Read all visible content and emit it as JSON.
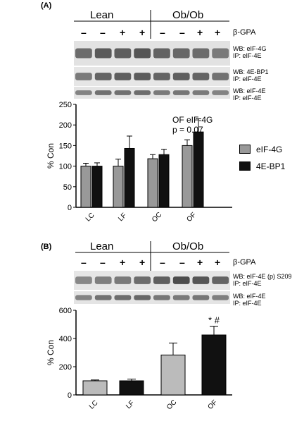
{
  "panelA": {
    "label": "(A)",
    "groups": [
      "Lean",
      "Ob/Ob"
    ],
    "treatment_label": "β-GPA",
    "signs": [
      "–",
      "–",
      "+",
      "+",
      "–",
      "–",
      "+",
      "+"
    ],
    "blots": [
      {
        "line1": "WB: eIF-4G",
        "line2": "IP: eIF-4E"
      },
      {
        "line1": "WB: 4E-BP1",
        "line2": "IP: eIF-4E"
      },
      {
        "line1": "WB: eIF-4E",
        "line2": "IP: eIF-4E"
      }
    ],
    "annotation_line1": "OF eIF-4G",
    "annotation_line2": "p = 0.07",
    "legend": [
      "eIF-4G",
      "4E-BP1"
    ]
  },
  "panelB": {
    "label": "(B)",
    "groups": [
      "Lean",
      "Ob/Ob"
    ],
    "treatment_label": "β-GPA",
    "signs": [
      "–",
      "–",
      "+",
      "+",
      "–",
      "–",
      "+",
      "+"
    ],
    "blots": [
      {
        "line1": "WB: eIF-4E (p) S209",
        "line2": "IP: eIF-4E"
      },
      {
        "line1": "WB: eIF-4E",
        "line2": "IP: eIF-4E"
      }
    ],
    "significance": "* #"
  },
  "chart_data": [
    {
      "type": "bar",
      "categories": [
        "LC",
        "LF",
        "OC",
        "OF"
      ],
      "ylabel": "% Con",
      "ylim": [
        0,
        250
      ],
      "yticks": [
        0,
        50,
        100,
        150,
        200,
        250
      ],
      "series": [
        {
          "name": "eIF-4G",
          "color": "#999999",
          "values": [
            100,
            100,
            118,
            150
          ],
          "errors": [
            7,
            17,
            10,
            14
          ]
        },
        {
          "name": "4E-BP1",
          "color": "#111111",
          "values": [
            100,
            143,
            128,
            183
          ],
          "errors": [
            8,
            30,
            13,
            32
          ]
        }
      ],
      "legend_position": "right"
    },
    {
      "type": "bar",
      "categories": [
        "LC",
        "LF",
        "OC",
        "OF"
      ],
      "ylabel": "% Con",
      "ylim": [
        0,
        600
      ],
      "yticks": [
        0,
        200,
        400,
        600
      ],
      "values": [
        100,
        100,
        283,
        425
      ],
      "errors": [
        6,
        12,
        85,
        62
      ],
      "colors": [
        "#bbbbbb",
        "#111111",
        "#bbbbbb",
        "#111111"
      ]
    }
  ]
}
